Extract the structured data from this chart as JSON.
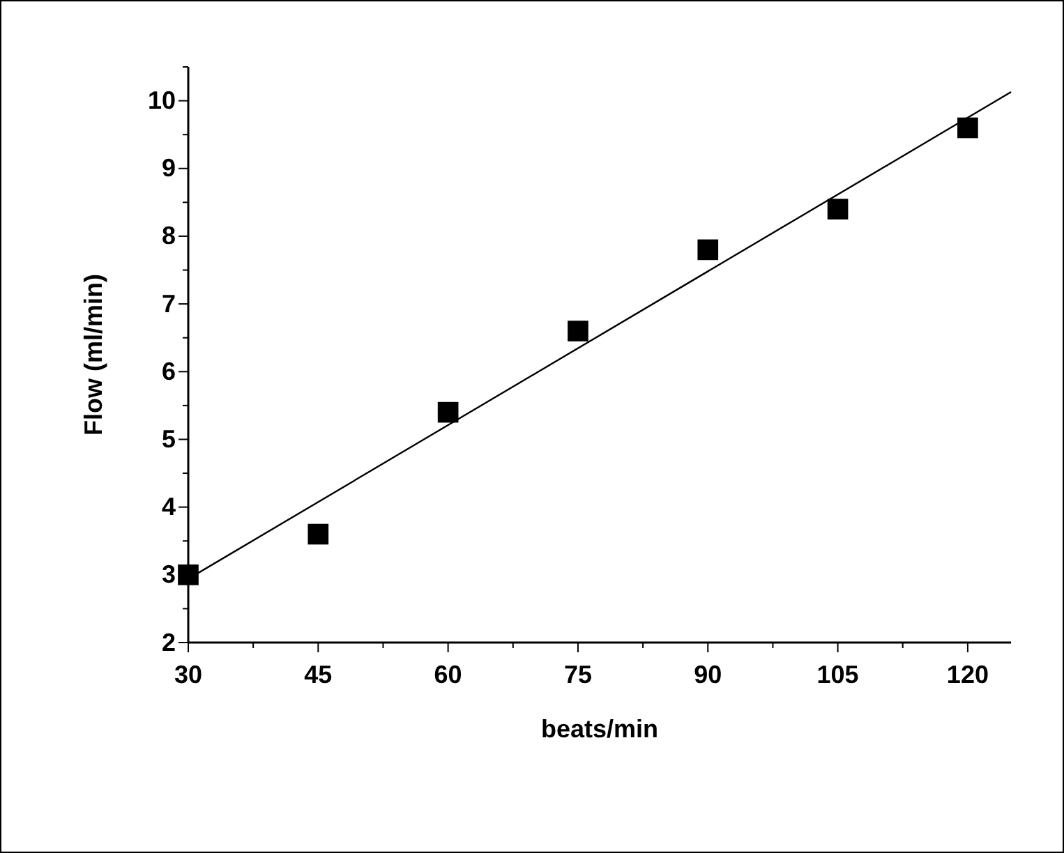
{
  "chart_data": {
    "type": "scatter",
    "xlabel": "beats/min",
    "ylabel": "Flow (ml/min)",
    "marker": "square",
    "grid": false,
    "xlim": [
      30,
      125
    ],
    "ylim": [
      2,
      10.5
    ],
    "xticks": [
      30,
      {
        "value": 37.5,
        "label": null
      },
      45,
      {
        "value": 52.5,
        "label": null
      },
      60,
      {
        "value": 67.5,
        "label": null
      },
      75,
      {
        "value": 82.5,
        "label": null
      },
      90,
      {
        "value": 97.5,
        "label": null
      },
      105,
      {
        "value": 112.5,
        "label": null
      },
      120
    ],
    "yticks": [
      2,
      {
        "value": 2.5,
        "label": null
      },
      3,
      {
        "value": 3.5,
        "label": null
      },
      4,
      {
        "value": 4.5,
        "label": null
      },
      5,
      {
        "value": 5.5,
        "label": null
      },
      6,
      {
        "value": 6.5,
        "label": null
      },
      7,
      {
        "value": 7.5,
        "label": null
      },
      8,
      {
        "value": 8.5,
        "label": null
      },
      9,
      {
        "value": 9.5,
        "label": null
      },
      10,
      {
        "value": 10.5,
        "label": null
      }
    ],
    "series": [
      {
        "color": "#000000",
        "x": [
          30,
          45,
          60,
          75,
          90,
          105,
          120
        ],
        "values": [
          3.0,
          3.6,
          5.4,
          6.6,
          7.8,
          8.4,
          9.6
        ]
      },
      {
        "type": "line",
        "color": "#000000",
        "marker": "none",
        "x": [
          30,
          125
        ],
        "values": [
          2.94,
          10.13
        ]
      }
    ]
  }
}
